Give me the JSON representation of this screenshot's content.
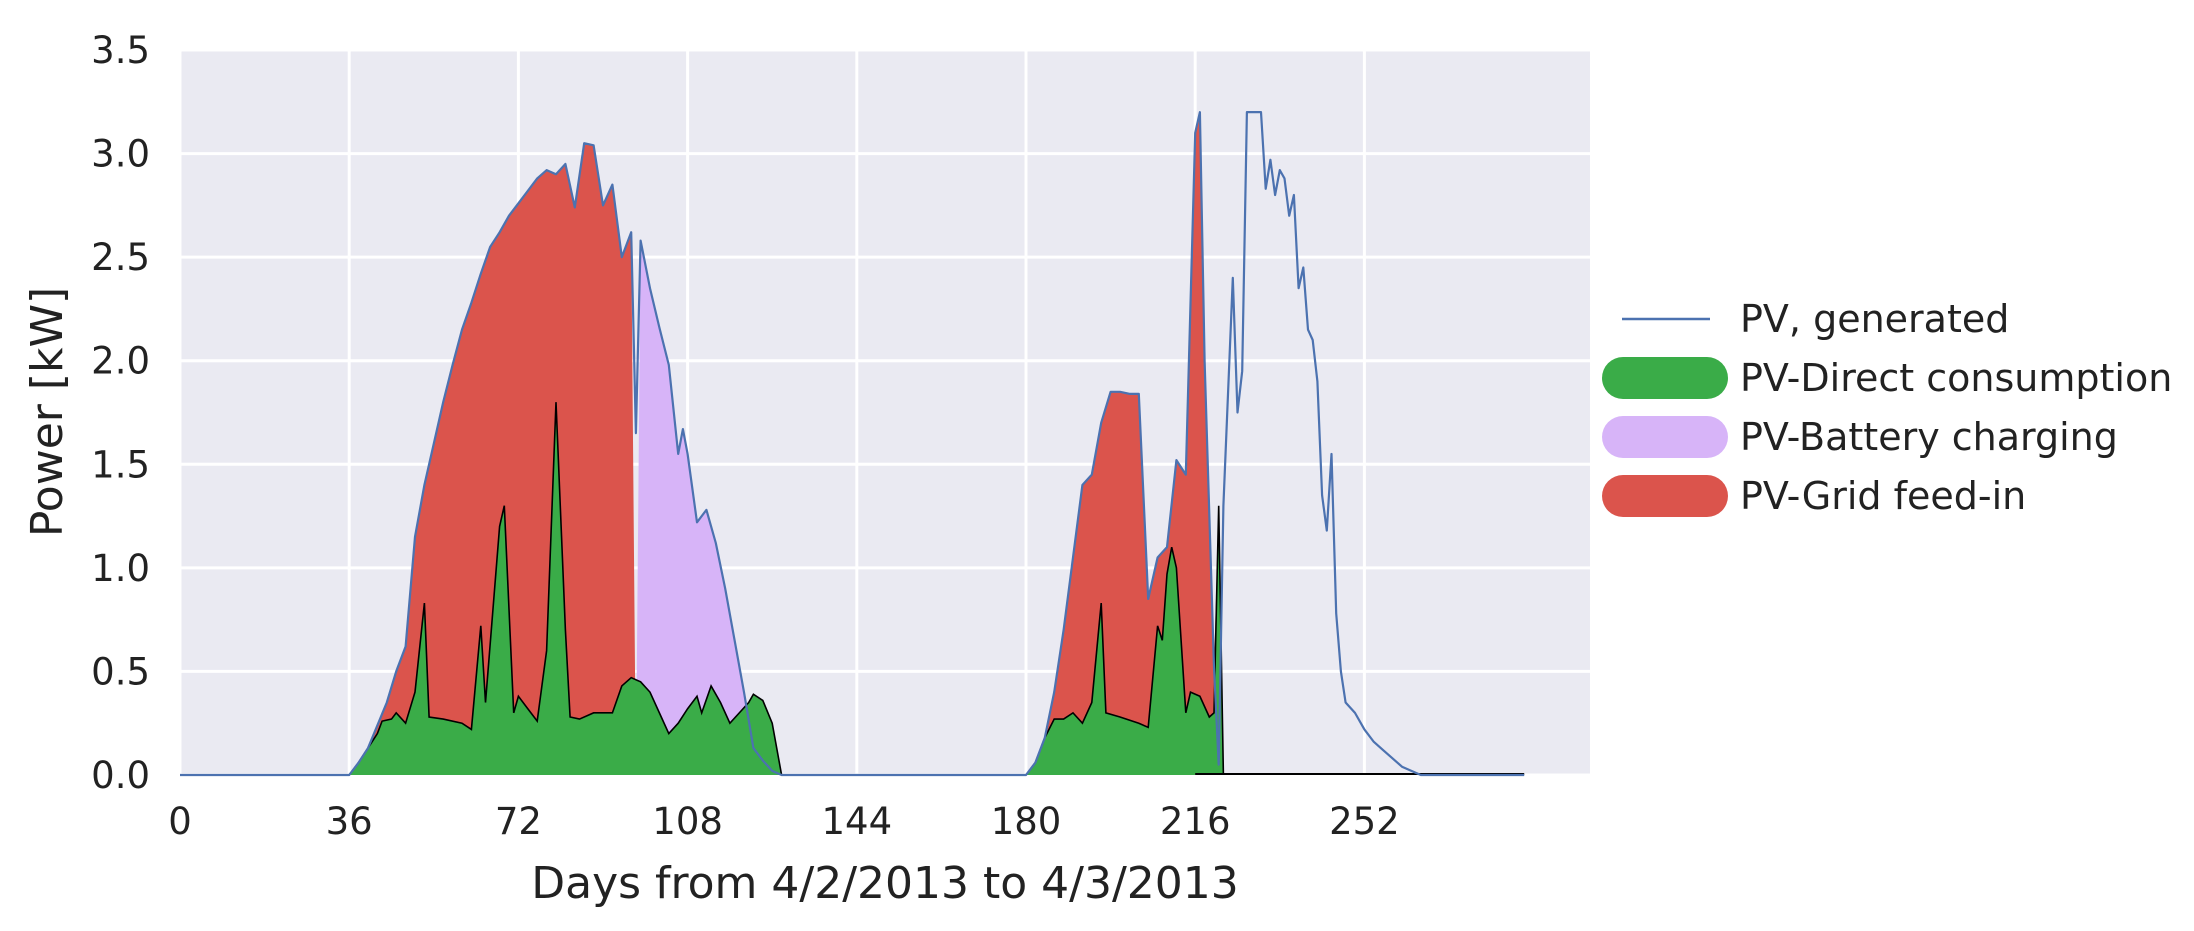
{
  "chart_data": {
    "type": "area",
    "title": "",
    "xlabel": "Days from 4/2/2013 to 4/3/2013",
    "ylabel": "Power [kW]",
    "xlim": [
      0,
      300
    ],
    "ylim": [
      0,
      3.5
    ],
    "xticks": [
      0,
      36,
      72,
      108,
      144,
      180,
      216,
      252
    ],
    "yticks": [
      "0.0",
      "0.5",
      "1.0",
      "1.5",
      "2.0",
      "2.5",
      "3.0",
      "3.5"
    ],
    "grid": true,
    "legend_position": "right",
    "colors": {
      "pv_generated": "#4c72b0",
      "direct": "#3aac48",
      "battery": "#d7b4f8",
      "grid": "#db544c",
      "background": "#eaeaf2"
    },
    "series": [
      {
        "name": "PV, generated",
        "kind": "line",
        "points": [
          [
            0,
            0
          ],
          [
            36,
            0
          ],
          [
            38,
            0.06
          ],
          [
            40,
            0.13
          ],
          [
            42,
            0.24
          ],
          [
            44,
            0.35
          ],
          [
            46,
            0.5
          ],
          [
            48,
            0.62
          ],
          [
            50,
            1.15
          ],
          [
            52,
            1.4
          ],
          [
            54,
            1.6
          ],
          [
            56,
            1.8
          ],
          [
            58,
            1.98
          ],
          [
            60,
            2.15
          ],
          [
            62,
            2.28
          ],
          [
            64,
            2.42
          ],
          [
            66,
            2.55
          ],
          [
            68,
            2.62
          ],
          [
            70,
            2.7
          ],
          [
            72,
            2.76
          ],
          [
            74,
            2.82
          ],
          [
            76,
            2.88
          ],
          [
            78,
            2.92
          ],
          [
            80,
            2.9
          ],
          [
            82,
            2.95
          ],
          [
            84,
            2.74
          ],
          [
            86,
            3.05
          ],
          [
            88,
            3.04
          ],
          [
            90,
            2.75
          ],
          [
            92,
            2.85
          ],
          [
            94,
            2.5
          ],
          [
            96,
            2.62
          ],
          [
            97,
            1.65
          ],
          [
            98,
            2.58
          ],
          [
            100,
            2.35
          ],
          [
            102,
            2.16
          ],
          [
            104,
            1.98
          ],
          [
            106,
            1.55
          ],
          [
            107,
            1.67
          ],
          [
            108,
            1.55
          ],
          [
            110,
            1.22
          ],
          [
            112,
            1.28
          ],
          [
            114,
            1.12
          ],
          [
            116,
            0.9
          ],
          [
            118,
            0.65
          ],
          [
            120,
            0.4
          ],
          [
            122,
            0.13
          ],
          [
            124,
            0.07
          ],
          [
            126,
            0.02
          ],
          [
            128,
            0
          ],
          [
            180,
            0
          ],
          [
            182,
            0.06
          ],
          [
            184,
            0.18
          ],
          [
            186,
            0.4
          ],
          [
            188,
            0.7
          ],
          [
            190,
            1.05
          ],
          [
            192,
            1.4
          ],
          [
            194,
            1.45
          ],
          [
            196,
            1.7
          ],
          [
            198,
            1.85
          ],
          [
            200,
            1.85
          ],
          [
            202,
            1.84
          ],
          [
            204,
            1.84
          ],
          [
            206,
            0.85
          ],
          [
            208,
            1.05
          ],
          [
            210,
            1.1
          ],
          [
            212,
            1.52
          ],
          [
            214,
            1.45
          ],
          [
            216,
            3.1
          ],
          [
            217,
            3.2
          ],
          [
            218,
            2.0
          ],
          [
            220,
            0.52
          ],
          [
            221,
            0.05
          ],
          [
            222,
            1.3
          ],
          [
            224,
            2.4
          ],
          [
            225,
            1.75
          ],
          [
            226,
            1.95
          ],
          [
            227,
            3.2
          ],
          [
            230,
            3.2
          ],
          [
            231,
            2.83
          ],
          [
            232,
            2.97
          ],
          [
            233,
            2.8
          ],
          [
            234,
            2.92
          ],
          [
            235,
            2.88
          ],
          [
            236,
            2.7
          ],
          [
            237,
            2.8
          ],
          [
            238,
            2.35
          ],
          [
            239,
            2.45
          ],
          [
            240,
            2.15
          ],
          [
            241,
            2.1
          ],
          [
            242,
            1.9
          ],
          [
            243,
            1.35
          ],
          [
            244,
            1.18
          ],
          [
            245,
            1.55
          ],
          [
            246,
            0.78
          ],
          [
            247,
            0.5
          ],
          [
            248,
            0.35
          ],
          [
            250,
            0.3
          ],
          [
            252,
            0.22
          ],
          [
            254,
            0.16
          ],
          [
            256,
            0.12
          ],
          [
            258,
            0.08
          ],
          [
            260,
            0.04
          ],
          [
            262,
            0.02
          ],
          [
            264,
            0
          ],
          [
            286,
            0
          ]
        ]
      },
      {
        "name": "PV-Direct consumption",
        "kind": "area",
        "points": [
          [
            0,
            0
          ],
          [
            36,
            0
          ],
          [
            38,
            0.06
          ],
          [
            40,
            0.13
          ],
          [
            42,
            0.2
          ],
          [
            43,
            0.26
          ],
          [
            45,
            0.27
          ],
          [
            46,
            0.3
          ],
          [
            48,
            0.25
          ],
          [
            50,
            0.4
          ],
          [
            52,
            0.83
          ],
          [
            53,
            0.28
          ],
          [
            56,
            0.27
          ],
          [
            60,
            0.25
          ],
          [
            62,
            0.22
          ],
          [
            64,
            0.72
          ],
          [
            65,
            0.35
          ],
          [
            68,
            1.2
          ],
          [
            69,
            1.3
          ],
          [
            71,
            0.3
          ],
          [
            72,
            0.38
          ],
          [
            74,
            0.32
          ],
          [
            76,
            0.26
          ],
          [
            78,
            0.6
          ],
          [
            80,
            1.8
          ],
          [
            82,
            0.7
          ],
          [
            83,
            0.28
          ],
          [
            85,
            0.27
          ],
          [
            88,
            0.3
          ],
          [
            90,
            0.3
          ],
          [
            92,
            0.3
          ],
          [
            94,
            0.43
          ],
          [
            96,
            0.47
          ],
          [
            98,
            0.45
          ],
          [
            100,
            0.4
          ],
          [
            102,
            0.3
          ],
          [
            104,
            0.2
          ],
          [
            106,
            0.25
          ],
          [
            108,
            0.32
          ],
          [
            110,
            0.38
          ],
          [
            111,
            0.3
          ],
          [
            113,
            0.43
          ],
          [
            115,
            0.35
          ],
          [
            117,
            0.25
          ],
          [
            119,
            0.3
          ],
          [
            121,
            0.35
          ],
          [
            122,
            0.39
          ],
          [
            124,
            0.36
          ],
          [
            126,
            0.25
          ],
          [
            128,
            0
          ],
          [
            180,
            0
          ],
          [
            182,
            0.06
          ],
          [
            184,
            0.18
          ],
          [
            186,
            0.27
          ],
          [
            188,
            0.27
          ],
          [
            190,
            0.3
          ],
          [
            192,
            0.25
          ],
          [
            194,
            0.35
          ],
          [
            196,
            0.83
          ],
          [
            197,
            0.3
          ],
          [
            200,
            0.28
          ],
          [
            204,
            0.25
          ],
          [
            206,
            0.23
          ],
          [
            208,
            0.72
          ],
          [
            209,
            0.65
          ],
          [
            210,
            0.97
          ],
          [
            211,
            1.1
          ],
          [
            212,
            1.0
          ],
          [
            214,
            0.3
          ],
          [
            215,
            0.4
          ],
          [
            217,
            0.38
          ],
          [
            219,
            0.28
          ],
          [
            220,
            0.3
          ],
          [
            221,
            1.3
          ],
          [
            222,
            0
          ]
        ]
      },
      {
        "name": "PV-Battery charging",
        "kind": "area",
        "points": [
          [
            97,
            0
          ],
          [
            98,
            2.58
          ],
          [
            100,
            2.35
          ],
          [
            102,
            2.16
          ],
          [
            104,
            1.98
          ],
          [
            106,
            1.55
          ],
          [
            107,
            1.67
          ],
          [
            108,
            1.55
          ],
          [
            110,
            1.22
          ],
          [
            112,
            1.28
          ],
          [
            114,
            1.12
          ],
          [
            116,
            0.9
          ],
          [
            118,
            0.65
          ],
          [
            120,
            0.4
          ],
          [
            122,
            0.13
          ],
          [
            124,
            0.07
          ],
          [
            126,
            0.02
          ],
          [
            128,
            0
          ]
        ]
      },
      {
        "name": "PV-Grid feed-in",
        "kind": "area",
        "points": [
          [
            36,
            0
          ],
          [
            38,
            0.06
          ],
          [
            40,
            0.13
          ],
          [
            42,
            0.24
          ],
          [
            44,
            0.35
          ],
          [
            46,
            0.5
          ],
          [
            48,
            0.62
          ],
          [
            50,
            1.15
          ],
          [
            52,
            1.4
          ],
          [
            54,
            1.6
          ],
          [
            56,
            1.8
          ],
          [
            58,
            1.98
          ],
          [
            60,
            2.15
          ],
          [
            62,
            2.28
          ],
          [
            64,
            2.42
          ],
          [
            66,
            2.55
          ],
          [
            68,
            2.62
          ],
          [
            70,
            2.7
          ],
          [
            72,
            2.76
          ],
          [
            74,
            2.82
          ],
          [
            76,
            2.88
          ],
          [
            78,
            2.92
          ],
          [
            80,
            2.9
          ],
          [
            82,
            2.95
          ],
          [
            84,
            2.74
          ],
          [
            86,
            3.05
          ],
          [
            88,
            3.04
          ],
          [
            90,
            2.75
          ],
          [
            92,
            2.85
          ],
          [
            94,
            2.5
          ],
          [
            96,
            2.62
          ],
          [
            97,
            0
          ],
          [
            180,
            0
          ],
          [
            182,
            0.06
          ],
          [
            184,
            0.18
          ],
          [
            186,
            0.4
          ],
          [
            188,
            0.7
          ],
          [
            190,
            1.05
          ],
          [
            192,
            1.4
          ],
          [
            194,
            1.45
          ],
          [
            196,
            1.7
          ],
          [
            198,
            1.85
          ],
          [
            200,
            1.85
          ],
          [
            202,
            1.84
          ],
          [
            204,
            1.84
          ],
          [
            206,
            0.85
          ],
          [
            208,
            1.05
          ],
          [
            210,
            1.1
          ],
          [
            212,
            1.52
          ],
          [
            214,
            1.45
          ],
          [
            216,
            3.1
          ],
          [
            217,
            3.2
          ],
          [
            218,
            2.0
          ],
          [
            220,
            0.52
          ],
          [
            221,
            1.3
          ],
          [
            222,
            0
          ]
        ]
      }
    ]
  }
}
